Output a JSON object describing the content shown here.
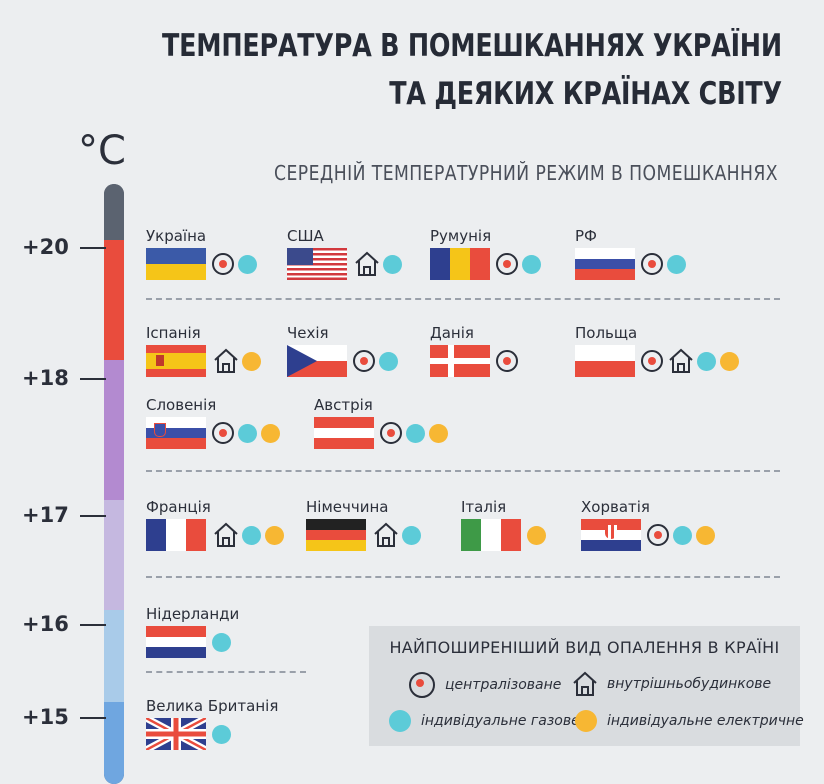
{
  "title": {
    "line1": "ТЕМПЕРАТУРА В ПОМЕШКАННЯХ УКРАЇНИ",
    "line2": "ТА ДЕЯКИХ КРАЇНАХ СВІТУ"
  },
  "subtitle": "СЕРЕДНІЙ ТЕМПЕРАТУРНИЙ РЕЖИМ В ПОМЕШКАННЯХ",
  "unit": "°C",
  "scale": {
    "t20": "+20",
    "t18": "+18",
    "t17": "+17",
    "t16": "+16",
    "t15": "+15"
  },
  "colors": {
    "red": "#e94c3d",
    "gas": "#5ccbd8",
    "electric": "#f7b733",
    "purple": "#b38ad0",
    "lavender": "#c5b8e0",
    "lightblue": "#a9cbe9",
    "blue": "#6fa6e0"
  },
  "countries": {
    "ukraine": "Україна",
    "usa": "США",
    "romania": "Румунія",
    "rf": "РФ",
    "spain": "Іспанія",
    "czech": "Чехія",
    "denmark": "Данія",
    "poland": "Польща",
    "slovenia": "Словенія",
    "austria": "Австрія",
    "france": "Франція",
    "germany": "Німеччина",
    "italy": "Італія",
    "croatia": "Хорватія",
    "netherlands": "Нідерланди",
    "uk": "Велика Британія"
  },
  "legend": {
    "title": "НАЙПОШИРЕНІШИЙ ВИД ОПАЛЕННЯ В КРАЇНІ",
    "central": "централізоване",
    "inhouse": "внутрішньобудинкове",
    "gas": "індивідуальне газове",
    "electric": "індивідуальне електричне"
  }
}
